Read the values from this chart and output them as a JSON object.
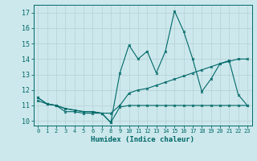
{
  "xlabel": "Humidex (Indice chaleur)",
  "xlim": [
    -0.5,
    23.5
  ],
  "ylim": [
    9.7,
    17.5
  ],
  "yticks": [
    10,
    11,
    12,
    13,
    14,
    15,
    16,
    17
  ],
  "xticks": [
    0,
    1,
    2,
    3,
    4,
    5,
    6,
    7,
    8,
    9,
    10,
    11,
    12,
    13,
    14,
    15,
    16,
    17,
    18,
    19,
    20,
    21,
    22,
    23
  ],
  "bg_color": "#cce8ec",
  "grid_color": "#b8d4d8",
  "line_color": "#006868",
  "line1_y": [
    11.3,
    11.1,
    11.0,
    10.6,
    10.6,
    10.5,
    10.5,
    10.5,
    9.9,
    10.9,
    11.0,
    11.0,
    11.0,
    11.0,
    11.0,
    11.0,
    11.0,
    11.0,
    11.0,
    11.0,
    11.0,
    11.0,
    11.0,
    11.0
  ],
  "line2_y": [
    11.5,
    11.1,
    11.0,
    10.8,
    10.7,
    10.6,
    10.6,
    10.5,
    10.5,
    11.0,
    11.8,
    12.0,
    12.1,
    12.3,
    12.5,
    12.7,
    12.9,
    13.1,
    13.3,
    13.5,
    13.7,
    13.85,
    14.0,
    14.0
  ],
  "line3_y": [
    11.5,
    11.1,
    11.0,
    10.8,
    10.7,
    10.6,
    10.6,
    10.5,
    9.9,
    13.1,
    14.9,
    14.0,
    14.5,
    13.1,
    14.5,
    17.1,
    15.8,
    14.0,
    11.9,
    12.7,
    13.7,
    13.9,
    11.7,
    11.0
  ]
}
